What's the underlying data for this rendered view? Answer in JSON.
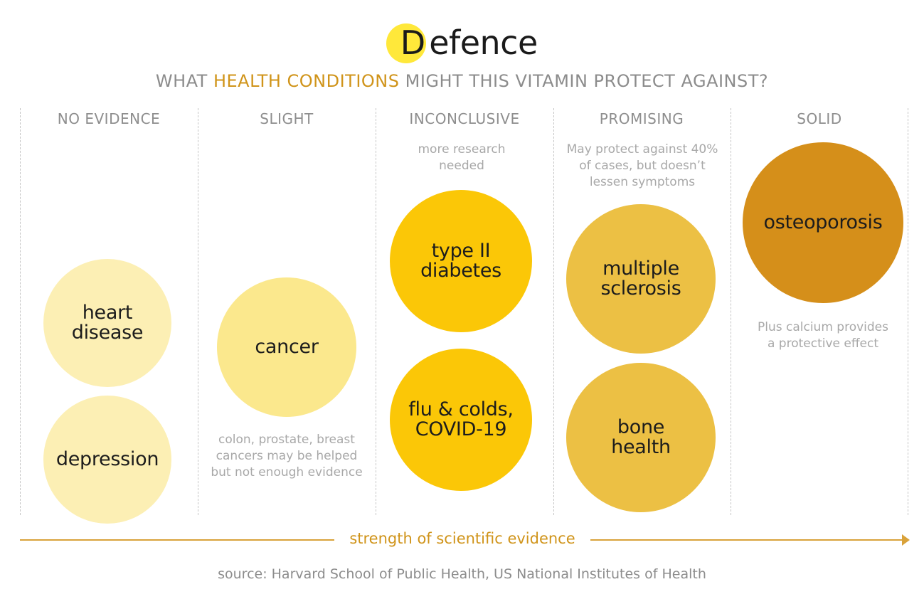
{
  "title": {
    "letter": "D",
    "rest": "efence"
  },
  "subtitle": {
    "before": "WHAT ",
    "highlight": "HEALTH CONDITIONS",
    "after": " MIGHT THIS VITAMIN PROTECT AGAINST?"
  },
  "colors": {
    "highlight": "#d0941a",
    "title_dot": "#ffe83a",
    "no_evidence": "#fcefb4",
    "slight": "#fbe88d",
    "inconclusive": "#fbc707",
    "promising": "#ecc044",
    "solid": "#d58f1a"
  },
  "columns": [
    {
      "header": "NO EVIDENCE",
      "conditions": [
        {
          "line1": "heart",
          "line2": "disease"
        },
        {
          "line1": "depression",
          "line2": ""
        }
      ]
    },
    {
      "header": "SLIGHT",
      "note": {
        "line1": "colon, prostate, breast",
        "line2": "cancers may be helped",
        "line3": "but not enough evidence"
      },
      "conditions": [
        {
          "line1": "cancer",
          "line2": ""
        }
      ]
    },
    {
      "header": "INCONCLUSIVE",
      "note": {
        "line1": "more research",
        "line2": "needed"
      },
      "conditions": [
        {
          "line1": "type II",
          "line2": "diabetes"
        },
        {
          "line1": "flu & colds,",
          "line2": "COVID-19"
        }
      ]
    },
    {
      "header": "PROMISING",
      "note": {
        "line1": "May protect against 40%",
        "line2": "of cases, but doesn’t",
        "line3": "lessen symptoms"
      },
      "conditions": [
        {
          "line1": "multiple",
          "line2": "sclerosis"
        },
        {
          "line1": "bone",
          "line2": "health"
        }
      ]
    },
    {
      "header": "SOLID",
      "note": {
        "line1": "Plus calcium provides",
        "line2": "a protective effect"
      },
      "conditions": [
        {
          "line1": "osteoporosis",
          "line2": ""
        }
      ]
    }
  ],
  "axis": {
    "label": "strength of scientific evidence"
  },
  "source": "source: Harvard School of Public Health, US National Institutes of Health"
}
